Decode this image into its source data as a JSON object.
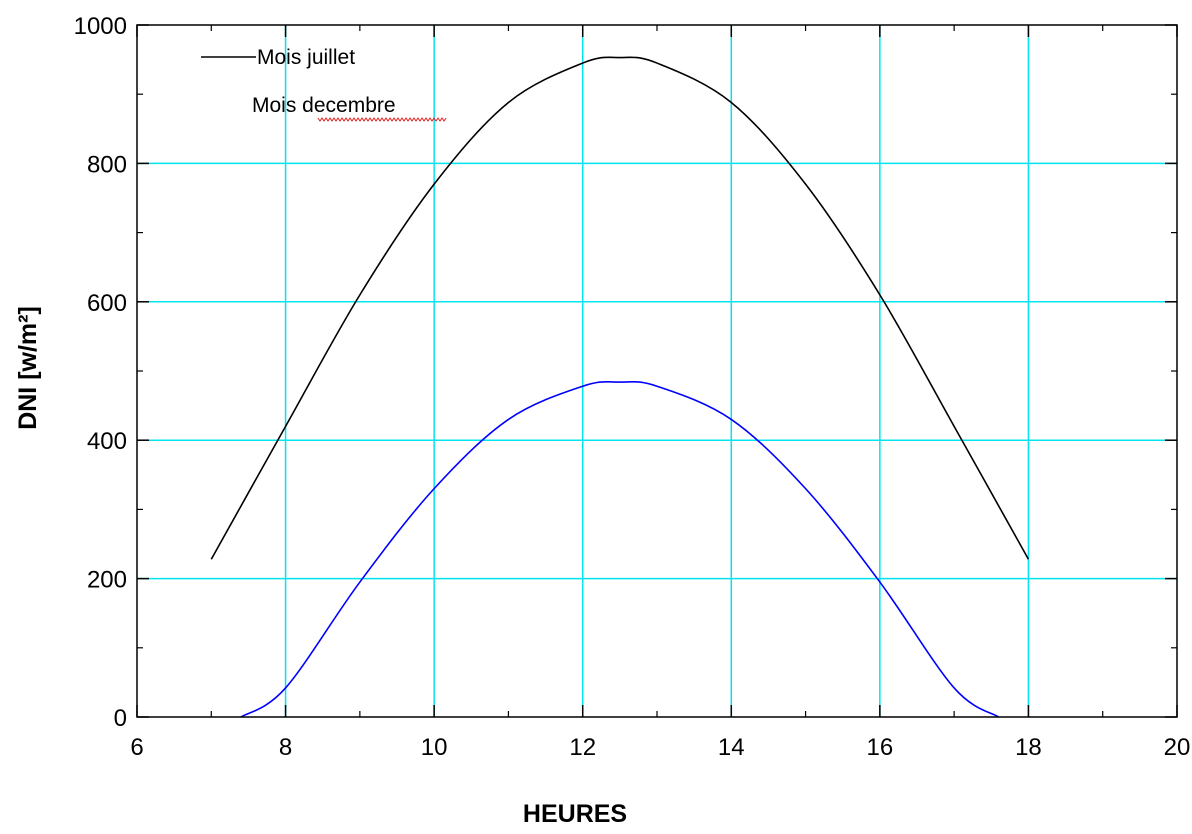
{
  "chart_data": {
    "type": "line",
    "xlabel": "HEURES",
    "ylabel": "DNI  [w/m²]",
    "xlim": [
      6,
      20
    ],
    "ylim": [
      0,
      1000
    ],
    "xticks": [
      6,
      8,
      10,
      12,
      14,
      16,
      18,
      20
    ],
    "yticks": [
      0,
      200,
      400,
      600,
      800,
      1000
    ],
    "grid": true,
    "legend_position": "top-left",
    "colors": {
      "grid": "#00e5f0",
      "axes": "#000000"
    },
    "series": [
      {
        "name": "Mois juillet",
        "color": "#000000",
        "x": [
          7,
          8,
          9,
          10,
          11,
          12,
          12.5,
          13,
          14,
          15,
          16,
          17,
          18
        ],
        "y": [
          228,
          420,
          610,
          770,
          888,
          945,
          953,
          945,
          888,
          770,
          610,
          420,
          228
        ]
      },
      {
        "name": "Mois decembre",
        "color": "#0000ff",
        "x": [
          7.4,
          8,
          9,
          10,
          11,
          12,
          12.5,
          13,
          14,
          15,
          16,
          17,
          17.6
        ],
        "y": [
          0,
          42,
          195,
          330,
          430,
          478,
          484,
          478,
          430,
          330,
          195,
          42,
          0
        ]
      }
    ]
  }
}
